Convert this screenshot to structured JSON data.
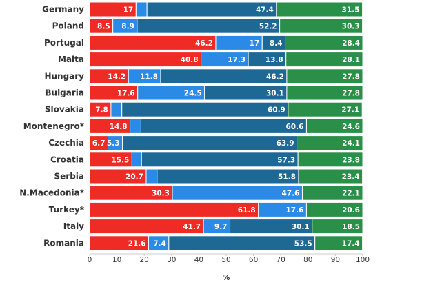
{
  "chart_data": {
    "type": "bar",
    "orientation": "horizontal",
    "stacked": true,
    "title": "",
    "xlabel": "%",
    "ylabel": "",
    "xlim": [
      0,
      100
    ],
    "x_ticks": [
      0,
      10,
      20,
      30,
      40,
      50,
      60,
      70,
      80,
      90,
      100
    ],
    "grid": false,
    "categories": [
      "Germany",
      "Poland",
      "Portugal",
      "Malta",
      "Hungary",
      "Bulgaria",
      "Slovakia",
      "Montenegro*",
      "Czechia",
      "Croatia",
      "Serbia",
      "N.Macedonia*",
      "Turkey*",
      "Italy",
      "Romania"
    ],
    "series": [
      {
        "name": "series-red",
        "color": "#ee2b25",
        "values": [
          17,
          8.5,
          46.2,
          40.8,
          14.2,
          17.6,
          7.8,
          14.8,
          6.7,
          15.5,
          20.7,
          30.3,
          61.8,
          41.7,
          21.6
        ],
        "labels": [
          "17",
          "8.5",
          "46.2",
          "40.8",
          "14.2",
          "17.6",
          "7.8",
          "14.8",
          "6.7",
          "15.5",
          "20.7",
          "30.3",
          "61.8",
          "41.7",
          "21.6"
        ]
      },
      {
        "name": "series-light-blue",
        "color": "#2a8ae6",
        "values": [
          4,
          8.9,
          17,
          17.3,
          11.8,
          24.5,
          4,
          4,
          5.3,
          3.5,
          4,
          47.6,
          17.6,
          9.7,
          7.4
        ],
        "labels": [
          "",
          "8.9",
          "17",
          "17.3",
          "11.8",
          "24.5",
          "",
          "",
          "5.3",
          "",
          "",
          "47.6",
          "17.6",
          "9.7",
          "7.4"
        ]
      },
      {
        "name": "series-dark-blue",
        "color": "#1e6896",
        "values": [
          47.4,
          52.2,
          8.4,
          13.8,
          46.2,
          30.1,
          60.9,
          60.6,
          63.9,
          57.3,
          51.8,
          0,
          0,
          30.1,
          53.5
        ],
        "labels": [
          "47.4",
          "52.2",
          "8.4",
          "13.8",
          "46.2",
          "30.1",
          "60.9",
          "60.6",
          "63.9",
          "57.3",
          "51.8",
          "",
          "",
          "30.1",
          "53.5"
        ]
      },
      {
        "name": "series-green",
        "color": "#2a8f48",
        "values": [
          31.5,
          30.3,
          28.4,
          28.1,
          27.8,
          27.8,
          27.1,
          24.6,
          24.1,
          23.8,
          23.4,
          22.1,
          20.6,
          18.5,
          17.4
        ],
        "labels": [
          "31.5",
          "30.3",
          "28.4",
          "28.1",
          "27.8",
          "27.8",
          "27.1",
          "24.6",
          "24.1",
          "23.8",
          "23.4",
          "22.1",
          "20.6",
          "18.5",
          "17.4"
        ]
      }
    ]
  }
}
